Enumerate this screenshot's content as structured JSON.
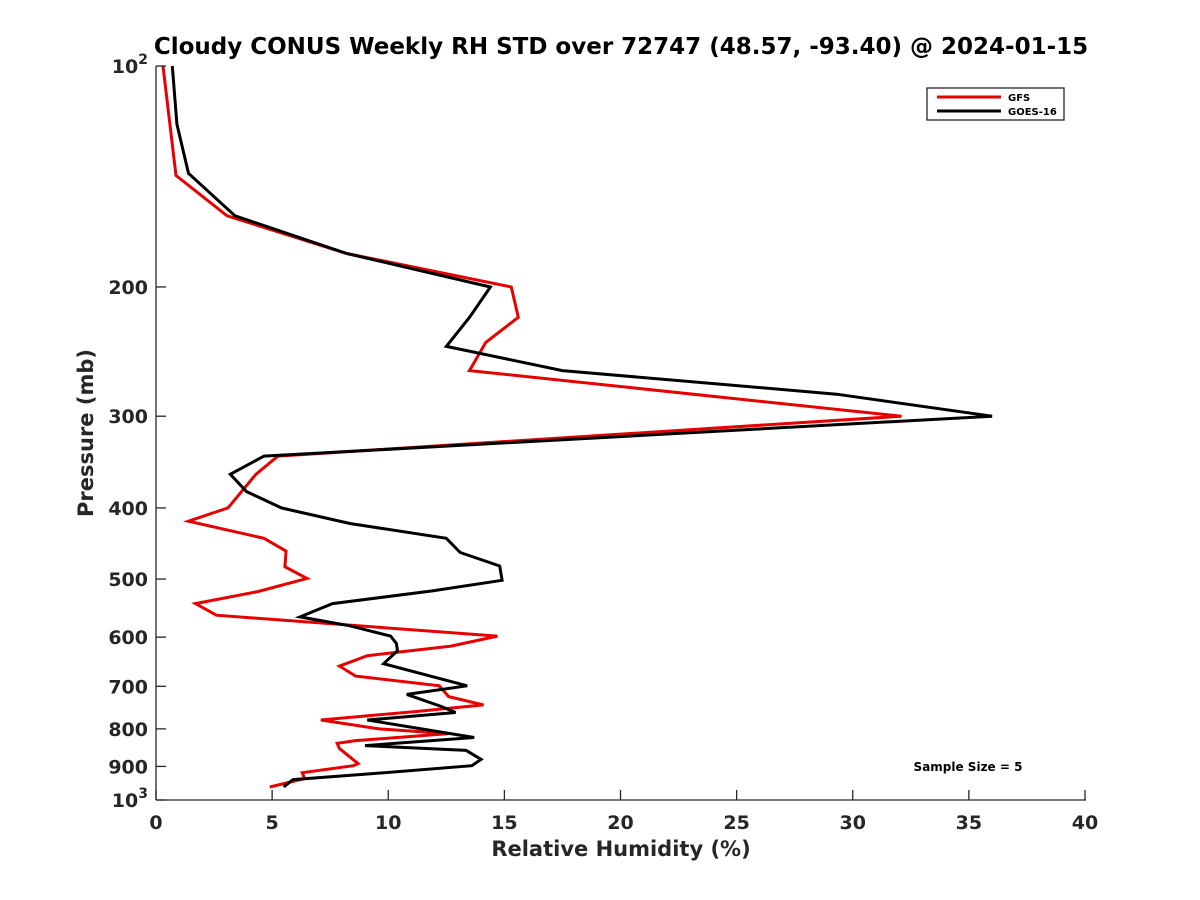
{
  "chart_data": {
    "type": "line",
    "title": "Cloudy CONUS Weekly RH STD over 72747 (48.57, -93.40) @ 2024-01-15",
    "xlabel": "Relative Humidity (%)",
    "ylabel": "Pressure (mb)",
    "xlim": [
      0,
      40
    ],
    "ylim": [
      100,
      1000
    ],
    "yscale": "log",
    "yreversed": true,
    "grid": false,
    "x_ticks": [
      0,
      5,
      10,
      15,
      20,
      25,
      30,
      35,
      40
    ],
    "x_tick_labels": [
      "0",
      "5",
      "10",
      "15",
      "20",
      "25",
      "30",
      "35",
      "40"
    ],
    "y_ticks": [
      100,
      200,
      300,
      400,
      500,
      600,
      700,
      800,
      900,
      1000
    ],
    "y_tick_labels": [
      {
        "base": "10",
        "exp": "2"
      },
      {
        "text": "200"
      },
      {
        "text": "300"
      },
      {
        "text": "400"
      },
      {
        "text": "500"
      },
      {
        "text": "600"
      },
      {
        "text": "700"
      },
      {
        "text": "800"
      },
      {
        "text": "900"
      },
      {
        "base": "10",
        "exp": "3"
      }
    ],
    "legend": {
      "position": "top-right"
    },
    "annotation": "Sample Size = 5",
    "series": [
      {
        "name": "GFS",
        "color": "#e60000",
        "points": [
          [
            0.3,
            100
          ],
          [
            0.86,
            141
          ],
          [
            3.06,
            160
          ],
          [
            8.2,
            180
          ],
          [
            15.3,
            200
          ],
          [
            15.6,
            220
          ],
          [
            14.2,
            238
          ],
          [
            13.5,
            260
          ],
          [
            32.1,
            300
          ],
          [
            5.25,
            340
          ],
          [
            4.3,
            360
          ],
          [
            3.1,
            400
          ],
          [
            1.4,
            417
          ],
          [
            4.65,
            440
          ],
          [
            5.6,
            458
          ],
          [
            5.55,
            481
          ],
          [
            6.5,
            499
          ],
          [
            4.4,
            520
          ],
          [
            1.7,
            540
          ],
          [
            2.6,
            560
          ],
          [
            14.7,
            598
          ],
          [
            12.7,
            617
          ],
          [
            9.1,
            636
          ],
          [
            7.9,
            657
          ],
          [
            8.6,
            678
          ],
          [
            12.2,
            699
          ],
          [
            12.6,
            723
          ],
          [
            14.1,
            742
          ],
          [
            11.1,
            758
          ],
          [
            7.1,
            778
          ],
          [
            9.6,
            800
          ],
          [
            12.6,
            812
          ],
          [
            8.6,
            830
          ],
          [
            7.8,
            837
          ],
          [
            7.9,
            851
          ],
          [
            8.7,
            892
          ],
          [
            8.5,
            898
          ],
          [
            6.3,
            918
          ],
          [
            6.4,
            935
          ],
          [
            4.9,
            960
          ]
        ]
      },
      {
        "name": "GOES-16",
        "color": "#000000",
        "points": [
          [
            0.7,
            100
          ],
          [
            0.9,
            120
          ],
          [
            1.4,
            140
          ],
          [
            3.4,
            160
          ],
          [
            8.2,
            180
          ],
          [
            14.4,
            200
          ],
          [
            13.5,
            220
          ],
          [
            12.5,
            241
          ],
          [
            17.5,
            260
          ],
          [
            29.3,
            280
          ],
          [
            36.0,
            300
          ],
          [
            4.65,
            340
          ],
          [
            3.2,
            360
          ],
          [
            3.9,
            380
          ],
          [
            5.4,
            400
          ],
          [
            8.35,
            420
          ],
          [
            12.5,
            440
          ],
          [
            13.1,
            460
          ],
          [
            14.8,
            480
          ],
          [
            14.9,
            502
          ],
          [
            11.9,
            519
          ],
          [
            7.6,
            540
          ],
          [
            6.2,
            563
          ],
          [
            8.35,
            579
          ],
          [
            10.1,
            598
          ],
          [
            10.35,
            612
          ],
          [
            10.4,
            626
          ],
          [
            9.8,
            652
          ],
          [
            13.4,
            699
          ],
          [
            10.8,
            718
          ],
          [
            12.3,
            746
          ],
          [
            12.9,
            760
          ],
          [
            9.1,
            778
          ],
          [
            13.7,
            822
          ],
          [
            9.0,
            843
          ],
          [
            13.35,
            856
          ],
          [
            14.0,
            880
          ],
          [
            13.6,
            898
          ],
          [
            9.25,
            921
          ],
          [
            5.9,
            938
          ],
          [
            5.5,
            960
          ]
        ]
      }
    ]
  }
}
